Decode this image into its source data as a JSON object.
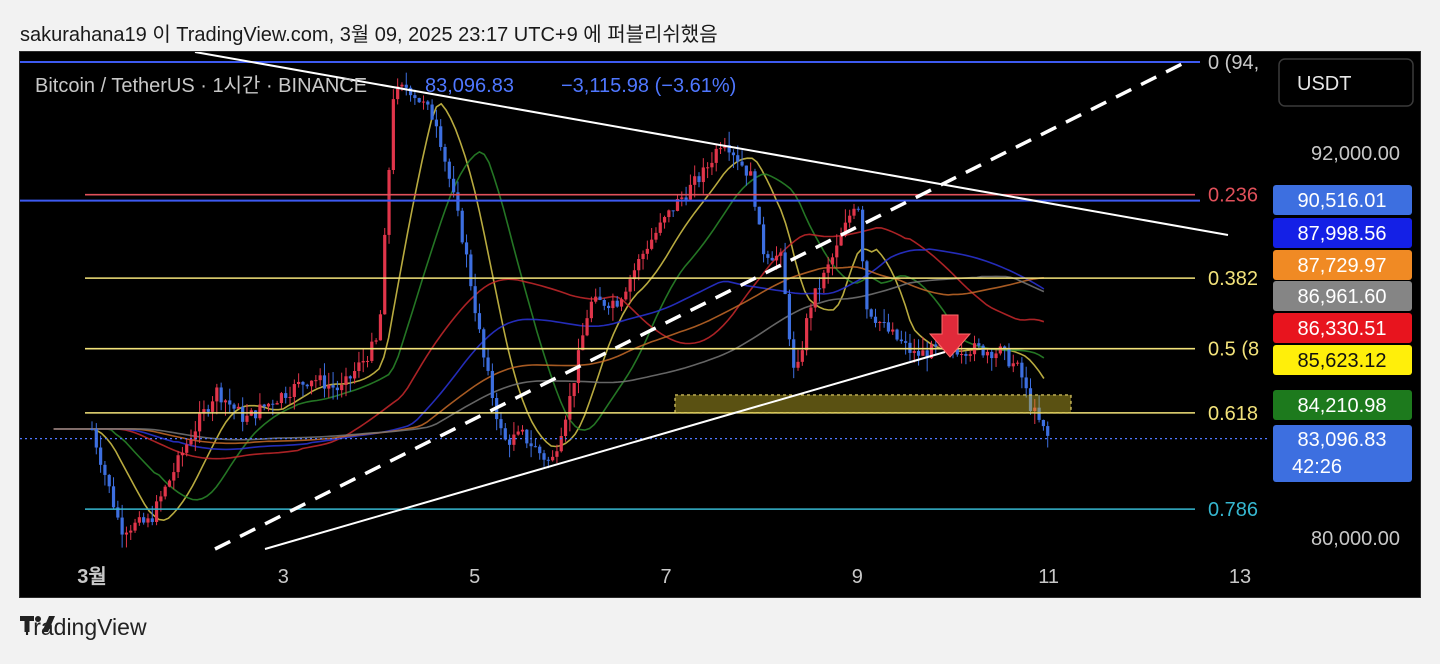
{
  "header": {
    "publish_line": "sakurahana19 이 TradingView.com, 3월 09, 2025 23:17 UTC+9 에 퍼블리쉬했음"
  },
  "legend": {
    "symbol": "Bitcoin / TetherUS · 1시간 · BINANCE",
    "last": "83,096.83",
    "change": "−3,115.98 (−3.61%)"
  },
  "currency_button": "USDT",
  "footer": {
    "brand": "TradingView"
  },
  "colors": {
    "up": "#e0354a",
    "down": "#3d6fe0",
    "fib_red": "#e0505a",
    "fib_yellow": "#f2e27a",
    "fib_cyan": "#36b7d0",
    "blue_line": "#3d5af1"
  },
  "chart_data": {
    "type": "line",
    "title": "",
    "x_ticks": [
      "3월",
      "3",
      "5",
      "7",
      "9",
      "11",
      "13"
    ],
    "y_ticks": [
      "92,000.00",
      "80,000.00"
    ],
    "price_series": {
      "name": "BTCUSDT",
      "x": [
        0,
        0.3,
        0.6,
        1.0,
        1.3,
        1.6,
        2.0,
        2.3,
        2.6,
        3.0,
        3.15,
        3.3,
        3.6,
        3.9,
        4.1,
        4.3,
        4.5,
        4.8,
        5.0,
        5.2,
        5.5,
        5.8,
        6.1,
        6.4,
        6.6,
        6.9,
        7.0,
        7.2,
        7.35,
        7.5,
        7.8,
        8.0,
        8.1,
        8.3,
        8.6,
        8.9,
        9.2,
        9.5,
        9.7,
        9.8,
        9.9,
        10.0
      ],
      "y": [
        83400,
        80300,
        80500,
        83000,
        84600,
        83700,
        84500,
        85000,
        84600,
        86200,
        93800,
        94100,
        93000,
        89000,
        85500,
        83000,
        83200,
        82300,
        84400,
        87300,
        87400,
        89100,
        90400,
        91400,
        92500,
        91200,
        89000,
        88700,
        84800,
        87200,
        89100,
        90700,
        87200,
        86500,
        85700,
        85900,
        85900,
        85800,
        85200,
        84200,
        83600,
        83097
      ]
    },
    "fib_levels": [
      {
        "label": "0 (94,",
        "value": 94900
      },
      {
        "label": "0.236",
        "value": 90700
      },
      {
        "label": "0.382",
        "value": 88100
      },
      {
        "label": "0.5 (8",
        "value": 85900
      },
      {
        "label": "0.618",
        "value": 83900
      },
      {
        "label": "0.786",
        "value": 80900
      }
    ],
    "price_tags": [
      {
        "value": "90,516.01",
        "bg": "#3d6fe0",
        "fg": "#ffffff"
      },
      {
        "value": "87,998.56",
        "bg": "#1420e6",
        "fg": "#ffffff"
      },
      {
        "value": "87,729.97",
        "bg": "#f08a24",
        "fg": "#ffffff"
      },
      {
        "value": "86,961.60",
        "bg": "#858585",
        "fg": "#ffffff"
      },
      {
        "value": "86,330.51",
        "bg": "#e8141e",
        "fg": "#ffffff"
      },
      {
        "value": "85,623.12",
        "bg": "#ffef0a",
        "fg": "#111111"
      },
      {
        "value": "84,210.98",
        "bg": "#1d7a1d",
        "fg": "#ffffff"
      }
    ],
    "last_tag": {
      "value": "83,096.83",
      "countdown": "42:26"
    },
    "ylim": [
      79700,
      95600
    ],
    "xlim": [
      -0.4,
      13.5
    ]
  }
}
